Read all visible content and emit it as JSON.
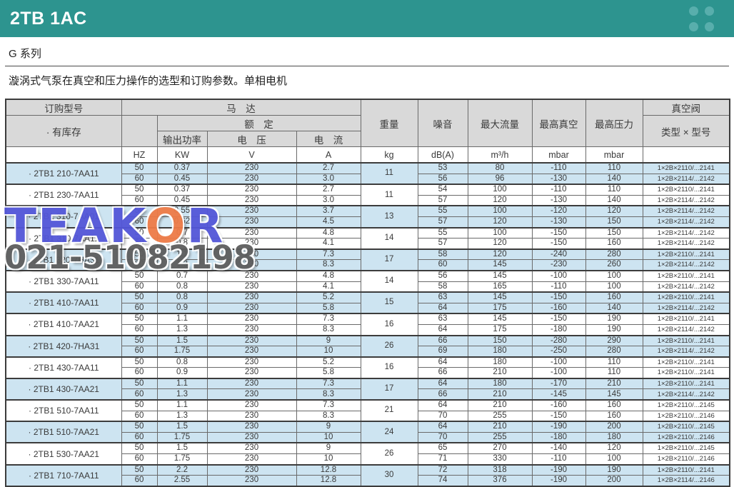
{
  "header": {
    "title": "2TB 1AC"
  },
  "series_label": "G 系列",
  "description": "漩涡式气泵在真空和压力操作的选型和订购参数。单相电机",
  "colors": {
    "teal": "#2d948f",
    "dot": "#58aeac",
    "header_gray": "#d9d9d9",
    "row_blue": "#cde4f1",
    "border_dark": "#3c3c3c"
  },
  "watermark": {
    "logo_part1": "TEAK",
    "logo_o": "O",
    "logo_part2": "R",
    "phone": "021-51082198"
  },
  "table": {
    "headers": {
      "order_model": "订购型号",
      "in_stock": "· 有库存",
      "motor": "马　达",
      "rated": "额　定",
      "output_power": "输出功率",
      "voltage": "电　压",
      "current": "电　流",
      "weight": "重量",
      "noise": "噪音",
      "max_flow": "最大流量",
      "max_vacuum": "最高真空",
      "max_pressure": "最高压力",
      "vacuum_valve": "真空阀",
      "type_model": "类型 × 型号"
    },
    "units": {
      "model": "",
      "hz": "HZ",
      "kw": "KW",
      "v": "V",
      "a": "A",
      "kg": "kg",
      "db": "dB(A)",
      "flow": "m³/h",
      "vac": "mbar",
      "press": "mbar",
      "valve": ""
    },
    "groups": [
      {
        "model": "· 2TB1 210-7AA11",
        "weight": "11",
        "highlight": true,
        "rows": [
          {
            "hz": "50",
            "kw": "0.37",
            "v": "230",
            "a": "2.7",
            "db": "53",
            "flow": "80",
            "vac": "-110",
            "press": "110",
            "valve": "1×2B×2110/...2141"
          },
          {
            "hz": "60",
            "kw": "0.45",
            "v": "230",
            "a": "3.0",
            "db": "56",
            "flow": "96",
            "vac": "-130",
            "press": "140",
            "valve": "1×2B×2114/...2142"
          }
        ]
      },
      {
        "model": "· 2TB1 230-7AA11",
        "weight": "11",
        "highlight": false,
        "rows": [
          {
            "hz": "50",
            "kw": "0.37",
            "v": "230",
            "a": "2.7",
            "db": "54",
            "flow": "100",
            "vac": "-110",
            "press": "110",
            "valve": "1×2B×2110/...2141"
          },
          {
            "hz": "60",
            "kw": "0.45",
            "v": "230",
            "a": "3.0",
            "db": "57",
            "flow": "120",
            "vac": "-130",
            "press": "140",
            "valve": "1×2B×2114/...2142"
          }
        ]
      },
      {
        "model": "· 2TB1 310-7AA01",
        "weight": "13",
        "highlight": true,
        "rows": [
          {
            "hz": "50",
            "kw": "0.55",
            "v": "230",
            "a": "3.7",
            "db": "55",
            "flow": "100",
            "vac": "-120",
            "press": "120",
            "valve": "1×2B×2114/...2142"
          },
          {
            "hz": "60",
            "kw": "0.62",
            "v": "230",
            "a": "4.5",
            "db": "57",
            "flow": "120",
            "vac": "-130",
            "press": "150",
            "valve": "1×2B×2114/...2142"
          }
        ]
      },
      {
        "model": "· 2TB1 310-7AA11",
        "weight": "14",
        "highlight": false,
        "rows": [
          {
            "hz": "50",
            "kw": "0.7",
            "v": "230",
            "a": "4.8",
            "db": "55",
            "flow": "100",
            "vac": "-150",
            "press": "150",
            "valve": "1×2B×2114/...2142"
          },
          {
            "hz": "60",
            "kw": "0.8",
            "v": "230",
            "a": "4.1",
            "db": "57",
            "flow": "120",
            "vac": "-150",
            "press": "160",
            "valve": "1×2B×2114/...2142"
          }
        ]
      },
      {
        "model": "· 2TB1 320-7HA31",
        "weight": "17",
        "highlight": true,
        "rows": [
          {
            "hz": "50",
            "kw": "1.1",
            "v": "230",
            "a": "7.3",
            "db": "58",
            "flow": "120",
            "vac": "-240",
            "press": "280",
            "valve": "1×2B×2110/...2141"
          },
          {
            "hz": "60",
            "kw": "1.3",
            "v": "230",
            "a": "8.3",
            "db": "60",
            "flow": "145",
            "vac": "-230",
            "press": "260",
            "valve": "1×2B×2114/...2142"
          }
        ]
      },
      {
        "model": "· 2TB1 330-7AA11",
        "weight": "14",
        "highlight": false,
        "rows": [
          {
            "hz": "50",
            "kw": "0.7",
            "v": "230",
            "a": "4.8",
            "db": "56",
            "flow": "145",
            "vac": "-100",
            "press": "100",
            "valve": "1×2B×2110/...2141"
          },
          {
            "hz": "60",
            "kw": "0.8",
            "v": "230",
            "a": "4.1",
            "db": "58",
            "flow": "165",
            "vac": "-110",
            "press": "100",
            "valve": "1×2B×2114/...2142"
          }
        ]
      },
      {
        "model": "· 2TB1 410-7AA11",
        "weight": "15",
        "highlight": true,
        "rows": [
          {
            "hz": "50",
            "kw": "0.8",
            "v": "230",
            "a": "5.2",
            "db": "63",
            "flow": "145",
            "vac": "-150",
            "press": "160",
            "valve": "1×2B×2110/...2141"
          },
          {
            "hz": "60",
            "kw": "0.9",
            "v": "230",
            "a": "5.8",
            "db": "64",
            "flow": "175",
            "vac": "-160",
            "press": "140",
            "valve": "1×2B×2114/...2142"
          }
        ]
      },
      {
        "model": "· 2TB1 410-7AA21",
        "weight": "16",
        "highlight": false,
        "rows": [
          {
            "hz": "50",
            "kw": "1.1",
            "v": "230",
            "a": "7.3",
            "db": "63",
            "flow": "145",
            "vac": "-150",
            "press": "190",
            "valve": "1×2B×2110/...2141"
          },
          {
            "hz": "60",
            "kw": "1.3",
            "v": "230",
            "a": "8.3",
            "db": "64",
            "flow": "175",
            "vac": "-180",
            "press": "190",
            "valve": "1×2B×2114/...2142"
          }
        ]
      },
      {
        "model": "· 2TB1 420-7HA31",
        "weight": "26",
        "highlight": true,
        "rows": [
          {
            "hz": "50",
            "kw": "1.5",
            "v": "230",
            "a": "9",
            "db": "66",
            "flow": "150",
            "vac": "-280",
            "press": "290",
            "valve": "1×2B×2110/...2141"
          },
          {
            "hz": "60",
            "kw": "1.75",
            "v": "230",
            "a": "10",
            "db": "69",
            "flow": "180",
            "vac": "-250",
            "press": "280",
            "valve": "1×2B×2114/...2142"
          }
        ]
      },
      {
        "model": "· 2TB1 430-7AA11",
        "weight": "16",
        "highlight": false,
        "rows": [
          {
            "hz": "50",
            "kw": "0.8",
            "v": "230",
            "a": "5.2",
            "db": "64",
            "flow": "180",
            "vac": "-100",
            "press": "110",
            "valve": "1×2B×2110/...2141"
          },
          {
            "hz": "60",
            "kw": "0.9",
            "v": "230",
            "a": "5.8",
            "db": "66",
            "flow": "210",
            "vac": "-100",
            "press": "110",
            "valve": "1×2B×2110/...2141"
          }
        ]
      },
      {
        "model": "· 2TB1 430-7AA21",
        "weight": "17",
        "highlight": true,
        "rows": [
          {
            "hz": "50",
            "kw": "1.1",
            "v": "230",
            "a": "7.3",
            "db": "64",
            "flow": "180",
            "vac": "-170",
            "press": "210",
            "valve": "1×2B×2110/...2141"
          },
          {
            "hz": "60",
            "kw": "1.3",
            "v": "230",
            "a": "8.3",
            "db": "66",
            "flow": "210",
            "vac": "-145",
            "press": "145",
            "valve": "1×2B×2114/...2142"
          }
        ]
      },
      {
        "model": "· 2TB1 510-7AA11",
        "weight": "21",
        "highlight": false,
        "rows": [
          {
            "hz": "50",
            "kw": "1.1",
            "v": "230",
            "a": "7.3",
            "db": "64",
            "flow": "210",
            "vac": "-160",
            "press": "160",
            "valve": "1×2B×2110/...2145"
          },
          {
            "hz": "60",
            "kw": "1.3",
            "v": "230",
            "a": "8.3",
            "db": "70",
            "flow": "255",
            "vac": "-150",
            "press": "160",
            "valve": "1×2B×2110/...2146"
          }
        ]
      },
      {
        "model": "· 2TB1 510-7AA21",
        "weight": "24",
        "highlight": true,
        "rows": [
          {
            "hz": "50",
            "kw": "1.5",
            "v": "230",
            "a": "9",
            "db": "64",
            "flow": "210",
            "vac": "-190",
            "press": "200",
            "valve": "1×2B×2110/...2145"
          },
          {
            "hz": "60",
            "kw": "1.75",
            "v": "230",
            "a": "10",
            "db": "70",
            "flow": "255",
            "vac": "-180",
            "press": "180",
            "valve": "1×2B×2110/...2146"
          }
        ]
      },
      {
        "model": "· 2TB1 530-7AA21",
        "weight": "26",
        "highlight": false,
        "rows": [
          {
            "hz": "50",
            "kw": "1.5",
            "v": "230",
            "a": "9",
            "db": "65",
            "flow": "270",
            "vac": "-140",
            "press": "120",
            "valve": "1×2B×2110/...2145"
          },
          {
            "hz": "60",
            "kw": "1.75",
            "v": "230",
            "a": "10",
            "db": "71",
            "flow": "330",
            "vac": "-110",
            "press": "100",
            "valve": "1×2B×2110/...2146"
          }
        ]
      },
      {
        "model": "· 2TB1 710-7AA11",
        "weight": "30",
        "highlight": true,
        "rows": [
          {
            "hz": "50",
            "kw": "2.2",
            "v": "230",
            "a": "12.8",
            "db": "72",
            "flow": "318",
            "vac": "-190",
            "press": "190",
            "valve": "1×2B×2110/...2141"
          },
          {
            "hz": "60",
            "kw": "2.55",
            "v": "230",
            "a": "12.8",
            "db": "74",
            "flow": "376",
            "vac": "-190",
            "press": "200",
            "valve": "1×2B×2114/...2146"
          }
        ]
      }
    ]
  }
}
